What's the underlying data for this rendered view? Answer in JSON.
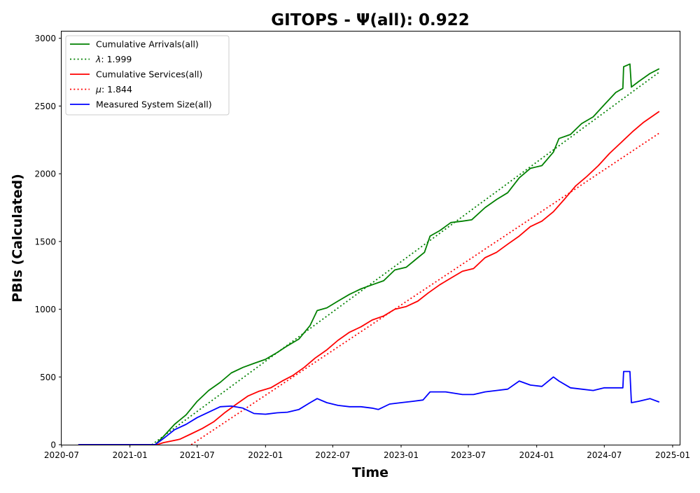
{
  "chart_data": {
    "type": "line",
    "title": "GITOPS -  Ψ(all): 0.922",
    "xlabel": "Time",
    "ylabel": "PBIs (Calculated)",
    "x_axis": {
      "type": "date",
      "range": [
        "2020-07-01",
        "2025-01-20"
      ],
      "tick_values": [
        "2020-07-01",
        "2021-01-01",
        "2021-07-01",
        "2022-01-01",
        "2022-07-01",
        "2023-01-01",
        "2023-07-01",
        "2024-01-01",
        "2024-07-01",
        "2025-01-01"
      ],
      "tick_labels": [
        "2020-07",
        "2021-01",
        "2021-07",
        "2022-01",
        "2022-07",
        "2023-01",
        "2023-07",
        "2024-01",
        "2024-07",
        "2025-01"
      ]
    },
    "y_axis": {
      "range": [
        0,
        3050
      ],
      "tick_values": [
        0,
        500,
        1000,
        1500,
        2000,
        2500,
        3000
      ],
      "tick_labels": [
        "0",
        "500",
        "1000",
        "1500",
        "2000",
        "2500",
        "3000"
      ]
    },
    "grid": false,
    "legend_position": "top-left",
    "series": [
      {
        "name": "Cumulative Arrivals(all)",
        "color": "#008000",
        "style": "solid",
        "points": [
          [
            "2020-08-15",
            0
          ],
          [
            "2021-03-10",
            0
          ],
          [
            "2021-04-01",
            60
          ],
          [
            "2021-05-01",
            150
          ],
          [
            "2021-06-01",
            220
          ],
          [
            "2021-07-01",
            320
          ],
          [
            "2021-08-01",
            400
          ],
          [
            "2021-09-01",
            460
          ],
          [
            "2021-10-01",
            530
          ],
          [
            "2021-11-01",
            570
          ],
          [
            "2021-12-01",
            600
          ],
          [
            "2022-01-01",
            630
          ],
          [
            "2022-02-01",
            680
          ],
          [
            "2022-03-01",
            730
          ],
          [
            "2022-04-01",
            780
          ],
          [
            "2022-05-01",
            880
          ],
          [
            "2022-05-20",
            990
          ],
          [
            "2022-06-15",
            1010
          ],
          [
            "2022-07-15",
            1060
          ],
          [
            "2022-08-15",
            1110
          ],
          [
            "2022-09-15",
            1150
          ],
          [
            "2022-10-15",
            1180
          ],
          [
            "2022-11-15",
            1210
          ],
          [
            "2022-12-15",
            1290
          ],
          [
            "2023-01-15",
            1310
          ],
          [
            "2023-02-15",
            1380
          ],
          [
            "2023-03-05",
            1420
          ],
          [
            "2023-03-20",
            1540
          ],
          [
            "2023-04-15",
            1580
          ],
          [
            "2023-05-15",
            1640
          ],
          [
            "2023-06-15",
            1650
          ],
          [
            "2023-07-10",
            1660
          ],
          [
            "2023-08-15",
            1750
          ],
          [
            "2023-09-15",
            1810
          ],
          [
            "2023-10-15",
            1860
          ],
          [
            "2023-11-15",
            1970
          ],
          [
            "2023-12-15",
            2040
          ],
          [
            "2024-01-15",
            2060
          ],
          [
            "2024-02-15",
            2160
          ],
          [
            "2024-03-01",
            2260
          ],
          [
            "2024-04-01",
            2290
          ],
          [
            "2024-05-01",
            2370
          ],
          [
            "2024-06-01",
            2420
          ],
          [
            "2024-07-01",
            2510
          ],
          [
            "2024-08-01",
            2600
          ],
          [
            "2024-08-20",
            2630
          ],
          [
            "2024-08-22",
            2790
          ],
          [
            "2024-09-08",
            2810
          ],
          [
            "2024-09-12",
            2640
          ],
          [
            "2024-10-01",
            2680
          ],
          [
            "2024-11-01",
            2740
          ],
          [
            "2024-11-26",
            2775
          ]
        ]
      },
      {
        "name": "λ: 1.999",
        "legend_symbol": "λ",
        "legend_value": ": 1.999",
        "color": "#008000",
        "style": "dotted",
        "points": [
          [
            "2021-03-01",
            0
          ],
          [
            "2024-11-26",
            2750
          ]
        ]
      },
      {
        "name": "Cumulative Services(all)",
        "color": "#ff0000",
        "style": "solid",
        "points": [
          [
            "2020-08-15",
            0
          ],
          [
            "2021-03-15",
            0
          ],
          [
            "2021-04-01",
            15
          ],
          [
            "2021-05-15",
            40
          ],
          [
            "2021-06-15",
            80
          ],
          [
            "2021-07-15",
            120
          ],
          [
            "2021-08-15",
            170
          ],
          [
            "2021-09-15",
            240
          ],
          [
            "2021-10-15",
            300
          ],
          [
            "2021-11-15",
            360
          ],
          [
            "2021-12-15",
            395
          ],
          [
            "2022-01-15",
            420
          ],
          [
            "2022-02-15",
            470
          ],
          [
            "2022-03-15",
            510
          ],
          [
            "2022-04-15",
            570
          ],
          [
            "2022-05-15",
            640
          ],
          [
            "2022-06-15",
            700
          ],
          [
            "2022-07-15",
            770
          ],
          [
            "2022-08-15",
            830
          ],
          [
            "2022-09-15",
            870
          ],
          [
            "2022-10-15",
            920
          ],
          [
            "2022-11-15",
            950
          ],
          [
            "2022-12-15",
            1000
          ],
          [
            "2023-01-15",
            1020
          ],
          [
            "2023-02-15",
            1060
          ],
          [
            "2023-03-15",
            1120
          ],
          [
            "2023-04-15",
            1180
          ],
          [
            "2023-05-15",
            1230
          ],
          [
            "2023-06-15",
            1280
          ],
          [
            "2023-07-15",
            1300
          ],
          [
            "2023-08-15",
            1380
          ],
          [
            "2023-09-15",
            1420
          ],
          [
            "2023-10-15",
            1480
          ],
          [
            "2023-11-15",
            1540
          ],
          [
            "2023-12-15",
            1610
          ],
          [
            "2024-01-15",
            1650
          ],
          [
            "2024-02-15",
            1720
          ],
          [
            "2024-03-15",
            1810
          ],
          [
            "2024-04-15",
            1910
          ],
          [
            "2024-05-15",
            1980
          ],
          [
            "2024-06-15",
            2060
          ],
          [
            "2024-07-15",
            2150
          ],
          [
            "2024-08-15",
            2230
          ],
          [
            "2024-09-15",
            2310
          ],
          [
            "2024-10-15",
            2380
          ],
          [
            "2024-11-26",
            2460
          ]
        ]
      },
      {
        "name": "μ: 1.844",
        "legend_symbol": "μ",
        "legend_value": ": 1.844",
        "color": "#ff0000",
        "style": "dotted",
        "points": [
          [
            "2021-06-15",
            0
          ],
          [
            "2024-11-26",
            2300
          ]
        ]
      },
      {
        "name": "Measured System Size(all)",
        "color": "#0000ff",
        "style": "solid",
        "points": [
          [
            "2020-08-15",
            0
          ],
          [
            "2021-03-10",
            0
          ],
          [
            "2021-04-01",
            45
          ],
          [
            "2021-05-01",
            110
          ],
          [
            "2021-06-01",
            150
          ],
          [
            "2021-07-01",
            200
          ],
          [
            "2021-08-01",
            240
          ],
          [
            "2021-09-01",
            280
          ],
          [
            "2021-10-01",
            285
          ],
          [
            "2021-11-01",
            270
          ],
          [
            "2021-12-01",
            230
          ],
          [
            "2022-01-01",
            225
          ],
          [
            "2022-02-01",
            235
          ],
          [
            "2022-03-01",
            240
          ],
          [
            "2022-04-01",
            260
          ],
          [
            "2022-05-01",
            310
          ],
          [
            "2022-05-20",
            340
          ],
          [
            "2022-06-15",
            310
          ],
          [
            "2022-07-15",
            290
          ],
          [
            "2022-08-15",
            280
          ],
          [
            "2022-09-15",
            280
          ],
          [
            "2022-10-15",
            270
          ],
          [
            "2022-11-01",
            260
          ],
          [
            "2022-12-01",
            300
          ],
          [
            "2023-01-01",
            310
          ],
          [
            "2023-02-01",
            320
          ],
          [
            "2023-03-01",
            330
          ],
          [
            "2023-03-20",
            390
          ],
          [
            "2023-05-01",
            390
          ],
          [
            "2023-06-15",
            370
          ],
          [
            "2023-07-15",
            370
          ],
          [
            "2023-08-15",
            390
          ],
          [
            "2023-09-15",
            400
          ],
          [
            "2023-10-15",
            410
          ],
          [
            "2023-11-15",
            470
          ],
          [
            "2023-12-15",
            440
          ],
          [
            "2024-01-15",
            430
          ],
          [
            "2024-02-15",
            500
          ],
          [
            "2024-03-01",
            470
          ],
          [
            "2024-04-01",
            420
          ],
          [
            "2024-05-01",
            410
          ],
          [
            "2024-06-01",
            400
          ],
          [
            "2024-07-01",
            420
          ],
          [
            "2024-08-20",
            420
          ],
          [
            "2024-08-22",
            540
          ],
          [
            "2024-09-08",
            540
          ],
          [
            "2024-09-12",
            310
          ],
          [
            "2024-10-01",
            320
          ],
          [
            "2024-11-01",
            340
          ],
          [
            "2024-11-26",
            315
          ]
        ]
      }
    ]
  }
}
